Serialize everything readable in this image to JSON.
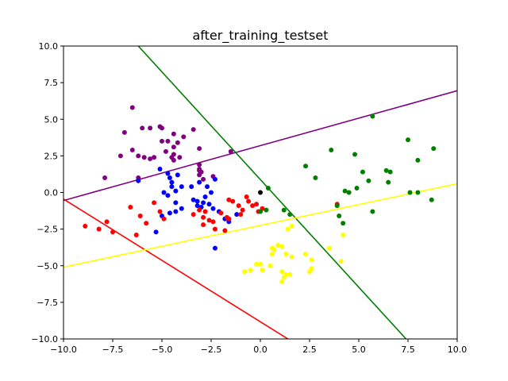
{
  "chart_data": {
    "type": "scatter",
    "title": "after_training_testset",
    "xlabel": "",
    "ylabel": "",
    "xlim": [
      -10,
      10
    ],
    "ylim": [
      -10,
      10
    ],
    "xticks": [
      -10,
      -7.5,
      -5,
      -2.5,
      0,
      2.5,
      5,
      7.5,
      10
    ],
    "yticks": [
      -10,
      -7.5,
      -5,
      -2.5,
      0,
      2.5,
      5,
      7.5,
      10
    ],
    "xtick_labels": [
      "−10.0",
      "−7.5",
      "−5.0",
      "−2.5",
      "0.0",
      "2.5",
      "5.0",
      "7.5",
      "10.0"
    ],
    "ytick_labels": [
      "−10.0",
      "−7.5",
      "−5.0",
      "−2.5",
      "0.0",
      "2.5",
      "5.0",
      "7.5",
      "10.0"
    ],
    "grid": false,
    "lines": [
      {
        "color": "#800080",
        "points": [
          [
            -10,
            -0.55
          ],
          [
            10,
            6.95
          ]
        ]
      },
      {
        "color": "#008000",
        "points": [
          [
            -6.2,
            10
          ],
          [
            7.4,
            -10
          ]
        ]
      },
      {
        "color": "#ff0000",
        "points": [
          [
            -10,
            -0.45
          ],
          [
            1.4,
            -10
          ]
        ]
      },
      {
        "color": "#ffff00",
        "points": [
          [
            -10,
            -5.1
          ],
          [
            10,
            0.6
          ]
        ]
      }
    ],
    "series": [
      {
        "color": "#800080",
        "points": [
          [
            -6.5,
            5.8
          ],
          [
            -6.9,
            4.1
          ],
          [
            -6.0,
            4.4
          ],
          [
            -5.6,
            4.4
          ],
          [
            -5.1,
            4.5
          ],
          [
            -5.0,
            4.4
          ],
          [
            -4.4,
            4.0
          ],
          [
            -3.4,
            4.3
          ],
          [
            -6.5,
            2.9
          ],
          [
            -7.1,
            2.5
          ],
          [
            -6.2,
            2.5
          ],
          [
            -5.9,
            2.4
          ],
          [
            -5.6,
            2.3
          ],
          [
            -5.4,
            2.4
          ],
          [
            -5.0,
            3.5
          ],
          [
            -4.7,
            3.5
          ],
          [
            -4.8,
            2.8
          ],
          [
            -4.4,
            3.1
          ],
          [
            -4.2,
            3.4
          ],
          [
            -3.9,
            3.8
          ],
          [
            -4.1,
            2.4
          ],
          [
            -4.4,
            2.2
          ],
          [
            -3.1,
            1.6
          ],
          [
            -3.0,
            1.4
          ],
          [
            -3.1,
            1.2
          ],
          [
            -2.9,
            0.9
          ],
          [
            -2.4,
            1.1
          ],
          [
            -3.1,
            1.9
          ],
          [
            -1.5,
            2.8
          ],
          [
            -6.2,
            1.0
          ],
          [
            -7.9,
            1.0
          ],
          [
            -3.1,
            1.5
          ],
          [
            -4.4,
            2.6
          ],
          [
            -4.5,
            2.4
          ],
          [
            -3.1,
            3.0
          ]
        ]
      },
      {
        "color": "#0000ff",
        "points": [
          [
            -6.2,
            0.8
          ],
          [
            -5.1,
            1.6
          ],
          [
            -4.7,
            1.3
          ],
          [
            -4.6,
            1.0
          ],
          [
            -4.5,
            0.7
          ],
          [
            -4.0,
            0.4
          ],
          [
            -4.9,
            0.0
          ],
          [
            -4.7,
            -0.2
          ],
          [
            -4.3,
            0.1
          ],
          [
            -3.5,
            0.4
          ],
          [
            -3.1,
            0.7
          ],
          [
            -2.7,
            0.4
          ],
          [
            -2.5,
            0.0
          ],
          [
            -2.3,
            0.9
          ],
          [
            -2.8,
            -0.3
          ],
          [
            -2.9,
            -0.7
          ],
          [
            -3.2,
            -0.6
          ],
          [
            -3.0,
            -1.0
          ],
          [
            -2.6,
            -0.8
          ],
          [
            -2.4,
            -1.1
          ],
          [
            -2.1,
            -1.3
          ],
          [
            -4.3,
            -0.7
          ],
          [
            -4.0,
            -1.1
          ],
          [
            -4.6,
            -1.4
          ],
          [
            -5.0,
            -1.6
          ],
          [
            -5.3,
            -2.7
          ],
          [
            -2.3,
            -3.8
          ],
          [
            -1.8,
            -1.8
          ],
          [
            -1.6,
            -2.0
          ],
          [
            -1.2,
            -1.5
          ],
          [
            -4.3,
            -1.3
          ],
          [
            -3.2,
            -0.9
          ],
          [
            -4.5,
            0.4
          ],
          [
            -3.4,
            -0.5
          ],
          [
            -4.2,
            1.2
          ]
        ]
      },
      {
        "color": "#ff0000",
        "points": [
          [
            -8.9,
            -2.3
          ],
          [
            -8.2,
            -2.5
          ],
          [
            -7.8,
            -2.0
          ],
          [
            -7.5,
            -2.7
          ],
          [
            -6.6,
            -1.0
          ],
          [
            -6.3,
            -2.9
          ],
          [
            -6.1,
            -1.6
          ],
          [
            -5.8,
            -2.1
          ],
          [
            -5.4,
            -0.7
          ],
          [
            -5.1,
            -1.3
          ],
          [
            -4.9,
            -1.8
          ],
          [
            -3.4,
            -1.5
          ],
          [
            -3.1,
            -1.2
          ],
          [
            -2.9,
            -1.7
          ],
          [
            -2.6,
            -1.9
          ],
          [
            -2.3,
            -2.5
          ],
          [
            -2.0,
            -1.4
          ],
          [
            -1.8,
            -2.6
          ],
          [
            -1.7,
            -1.7
          ],
          [
            -1.6,
            -0.5
          ],
          [
            -1.4,
            -0.6
          ],
          [
            -1.1,
            -0.9
          ],
          [
            -0.9,
            -1.2
          ],
          [
            -0.7,
            -0.3
          ],
          [
            -0.6,
            -0.6
          ],
          [
            -0.4,
            -0.9
          ],
          [
            -0.2,
            -0.8
          ],
          [
            -0.1,
            -1.3
          ],
          [
            0.1,
            -1.1
          ],
          [
            -2.4,
            -2.0
          ],
          [
            -1.6,
            -1.8
          ],
          [
            -2.8,
            -1.3
          ],
          [
            -2.9,
            -2.2
          ],
          [
            -1.0,
            -1.5
          ],
          [
            3.9,
            -0.8
          ]
        ]
      },
      {
        "color": "#008000",
        "points": [
          [
            5.7,
            5.2
          ],
          [
            7.5,
            3.6
          ],
          [
            8.8,
            3.0
          ],
          [
            3.6,
            2.9
          ],
          [
            4.8,
            2.6
          ],
          [
            8.0,
            2.2
          ],
          [
            2.3,
            1.8
          ],
          [
            2.8,
            1.0
          ],
          [
            5.2,
            1.4
          ],
          [
            5.5,
            0.8
          ],
          [
            6.4,
            1.5
          ],
          [
            6.6,
            1.4
          ],
          [
            6.5,
            0.7
          ],
          [
            4.3,
            0.1
          ],
          [
            4.5,
            0.0
          ],
          [
            4.9,
            0.3
          ],
          [
            7.6,
            0.0
          ],
          [
            8.0,
            0.0
          ],
          [
            3.9,
            -0.9
          ],
          [
            4.0,
            -1.6
          ],
          [
            5.7,
            -1.3
          ],
          [
            8.7,
            -0.5
          ],
          [
            4.2,
            -2.1
          ],
          [
            1.2,
            -1.2
          ],
          [
            0.3,
            -1.2
          ],
          [
            0.0,
            -1.3
          ],
          [
            1.5,
            -1.5
          ],
          [
            0.4,
            0.3
          ]
        ]
      },
      {
        "color": "#ffff00",
        "points": [
          [
            1.1,
            -3.7
          ],
          [
            1.4,
            -2.5
          ],
          [
            1.6,
            -2.3
          ],
          [
            0.9,
            -3.6
          ],
          [
            0.7,
            -3.9
          ],
          [
            0.6,
            -4.2
          ],
          [
            0.5,
            -5.0
          ],
          [
            0.0,
            -4.9
          ],
          [
            -0.2,
            -4.9
          ],
          [
            -0.5,
            -5.3
          ],
          [
            -0.8,
            -5.4
          ],
          [
            0.1,
            -5.3
          ],
          [
            1.1,
            -5.4
          ],
          [
            1.3,
            -5.6
          ],
          [
            1.2,
            -5.8
          ],
          [
            1.1,
            -6.1
          ],
          [
            1.5,
            -5.6
          ],
          [
            1.3,
            -4.2
          ],
          [
            1.6,
            -4.4
          ],
          [
            2.3,
            -4.2
          ],
          [
            2.6,
            -4.6
          ],
          [
            2.6,
            -5.2
          ],
          [
            2.5,
            -5.4
          ],
          [
            3.5,
            -3.8
          ],
          [
            4.1,
            -4.7
          ],
          [
            4.2,
            -2.9
          ],
          [
            0.6,
            -3.8
          ]
        ]
      },
      {
        "color": "#000000",
        "points": [
          [
            0.0,
            0.0
          ]
        ]
      }
    ]
  }
}
